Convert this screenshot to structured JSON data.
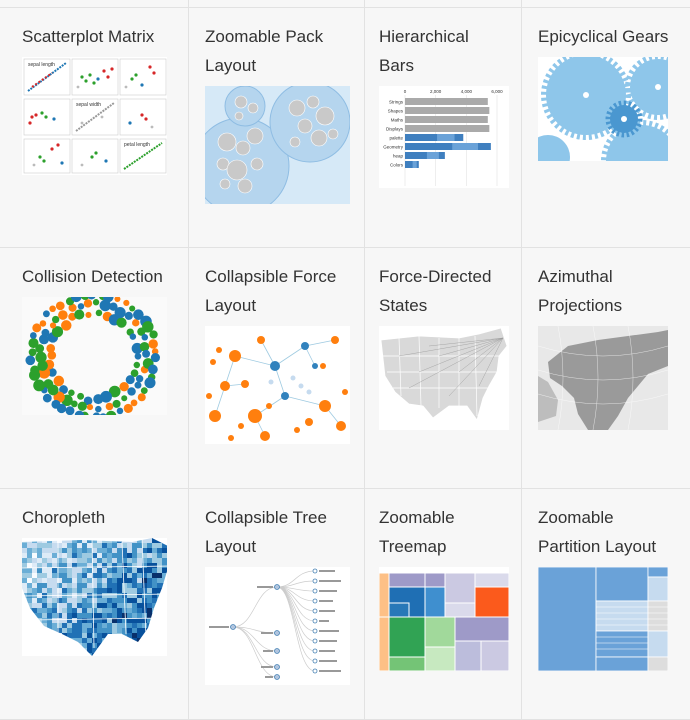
{
  "gallery": {
    "items": [
      {
        "title": "Scatterplot Matrix"
      },
      {
        "title": "Zoomable Pack Layout"
      },
      {
        "title": "Hierarchical Bars"
      },
      {
        "title": "Epicyclical Gears"
      },
      {
        "title": "Collision Detection"
      },
      {
        "title": "Collapsible Force Layout"
      },
      {
        "title": "Force-Directed States"
      },
      {
        "title": "Azimuthal Projections"
      },
      {
        "title": "Choropleth"
      },
      {
        "title": "Collapsible Tree Layout"
      },
      {
        "title": "Zoomable Treemap"
      },
      {
        "title": "Zoomable Partition Layout"
      }
    ]
  },
  "thumbnails": {
    "scatter_labels": [
      "sepal length",
      "sepal width",
      "petal length"
    ],
    "hbars_ticks": [
      "0",
      "2,000",
      "4,000",
      "6,000"
    ],
    "hbars_labels": [
      "Strings",
      "Shapes",
      "Maths",
      "Displays",
      "palette",
      "Geometry",
      "heap",
      "Colors"
    ],
    "hbars_values": [
      5400,
      5500,
      5400,
      5500,
      3800,
      5600,
      2600,
      900
    ],
    "colors": {
      "blue": "#1f77b4",
      "orange": "#ff7f0e",
      "green": "#2ca02c",
      "red": "#d62728",
      "light_blue": "#9ecae1",
      "bar_gray": "#aaaaaa"
    }
  }
}
